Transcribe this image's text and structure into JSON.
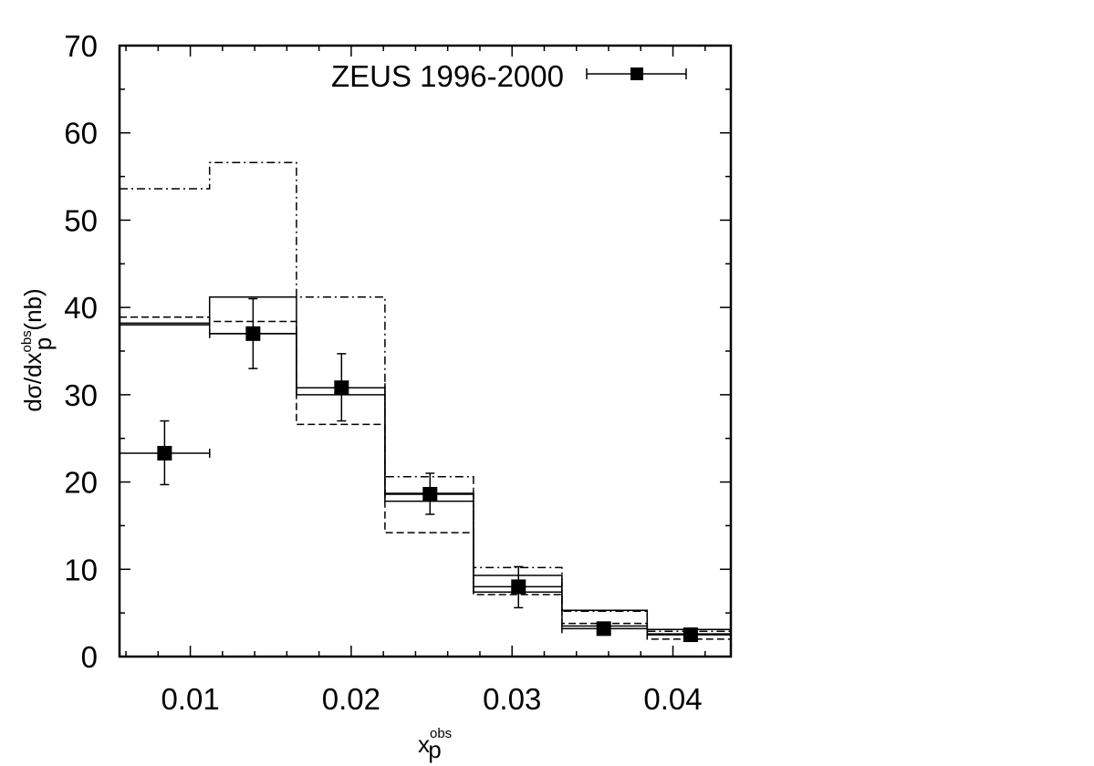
{
  "chart_data": {
    "type": "step-histogram-with-points",
    "xlim": [
      0.0056,
      0.0436
    ],
    "ylim": [
      0,
      70
    ],
    "x_ticks": [
      {
        "value": 0.01,
        "label": "0.01"
      },
      {
        "value": 0.02,
        "label": "0.02"
      },
      {
        "value": 0.03,
        "label": "0.03"
      },
      {
        "value": 0.04,
        "label": "0.04"
      }
    ],
    "y_ticks": [
      {
        "value": 0,
        "label": "0"
      },
      {
        "value": 10,
        "label": "10"
      },
      {
        "value": 20,
        "label": "20"
      },
      {
        "value": 30,
        "label": "30"
      },
      {
        "value": 40,
        "label": "40"
      },
      {
        "value": 50,
        "label": "50"
      },
      {
        "value": 60,
        "label": "60"
      },
      {
        "value": 70,
        "label": "70"
      }
    ],
    "xlabel": {
      "base": "x",
      "sup": "obs",
      "sub": "p"
    },
    "ylabel": {
      "pre": "dσ/dx",
      "sup": "obs",
      "sub": "p",
      "post": " (nb)"
    },
    "bin_edges": [
      0.0056,
      0.0112,
      0.0166,
      0.0221,
      0.0276,
      0.0331,
      0.0384,
      0.0436
    ],
    "data_series": {
      "name": "ZEUS 1996-2000",
      "points": [
        {
          "x": 0.0084,
          "y": 23.3,
          "yerr_lo": 19.7,
          "yerr_hi": 27.0
        },
        {
          "x": 0.0139,
          "y": 37.0,
          "yerr_lo": 33.0,
          "yerr_hi": 41.0
        },
        {
          "x": 0.0194,
          "y": 30.8,
          "yerr_lo": 27.0,
          "yerr_hi": 34.7
        },
        {
          "x": 0.0249,
          "y": 18.6,
          "yerr_lo": 16.3,
          "yerr_hi": 21.0
        },
        {
          "x": 0.0304,
          "y": 8.0,
          "yerr_lo": 5.6,
          "yerr_hi": 10.3
        },
        {
          "x": 0.0357,
          "y": 3.2,
          "yerr_lo": 2.6,
          "yerr_hi": 3.8
        },
        {
          "x": 0.0411,
          "y": 2.5,
          "yerr_lo": 2.0,
          "yerr_hi": 3.0
        }
      ]
    },
    "histograms": [
      {
        "style": "solid",
        "values": [
          38.0,
          41.2,
          30.0,
          17.8,
          7.4,
          3.5,
          2.6
        ]
      },
      {
        "style": "solid",
        "values": [
          38.2,
          37.0,
          30.8,
          18.7,
          9.3,
          5.3,
          3.1
        ]
      },
      {
        "style": "dashed",
        "values": [
          38.9,
          38.4,
          26.6,
          14.2,
          7.1,
          3.8,
          2.0
        ]
      },
      {
        "style": "dashdot",
        "values": [
          53.6,
          56.6,
          41.2,
          20.6,
          10.2,
          5.2,
          2.9
        ]
      }
    ]
  }
}
